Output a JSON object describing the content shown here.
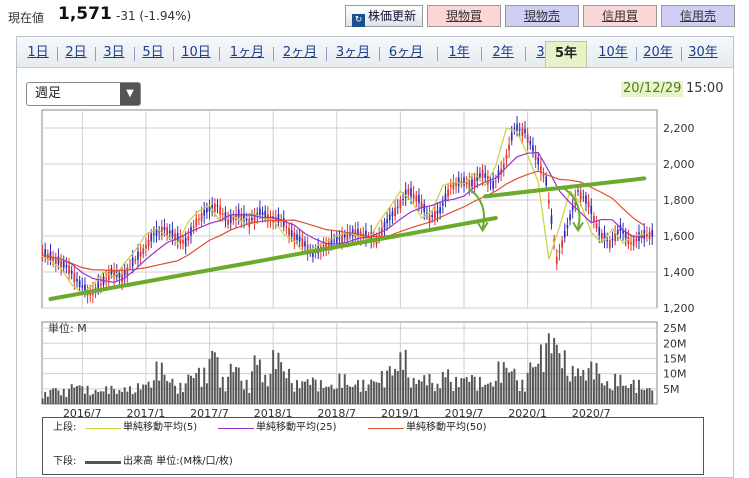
{
  "header": {
    "price_label": "現在値",
    "price_value": "1,571",
    "price_change": "-31 (-1.94%)",
    "refresh_icon": "refresh-icon",
    "refresh_label": "株価更新",
    "buy_label": "現物買",
    "sell_label": "現物売",
    "margin_buy_label": "信用買",
    "margin_sell_label": "信用売"
  },
  "tabs": [
    {
      "label": "1日"
    },
    {
      "label": "2日"
    },
    {
      "label": "3日"
    },
    {
      "label": "5日"
    },
    {
      "label": "10日"
    },
    {
      "label": "1ヶ月"
    },
    {
      "label": "2ヶ月"
    },
    {
      "label": "3ヶ月"
    },
    {
      "label": "6ヶ月"
    },
    {
      "label": "1年"
    },
    {
      "label": "2年"
    },
    {
      "label": "3年"
    },
    {
      "label": "5年"
    },
    {
      "label": "10年"
    },
    {
      "label": "20年"
    },
    {
      "label": "30年"
    }
  ],
  "active_tab": "5年",
  "period_select": {
    "value": "週足"
  },
  "timestamp": {
    "date": "20/12/29",
    "time": "15:00"
  },
  "colors": {
    "up_candle": "#e0322e",
    "down_candle": "#2f2fb8",
    "ma5": "#c9cf3a",
    "ma25": "#9b30d0",
    "ma50": "#e05030",
    "volume": "#555555",
    "trendline": "#6aab2e"
  },
  "chart_data": [
    {
      "type": "candlestick",
      "interval": "weekly",
      "x_tick_labels": [
        "2016/7",
        "2017/1",
        "2017/7",
        "2018/1",
        "2018/7",
        "2019/1",
        "2019/7",
        "2020/1",
        "2020/7"
      ],
      "y_tick_labels": [
        "2,200",
        "2,000",
        "1,800",
        "1,600",
        "1,400",
        "1,200"
      ],
      "ylim": [
        1200,
        2300
      ],
      "grid": true,
      "close_series": [
        [
          "2016/1",
          1470
        ],
        [
          "2016/2",
          1520
        ],
        [
          "2016/3",
          1490
        ],
        [
          "2016/4",
          1460
        ],
        [
          "2016/5",
          1420
        ],
        [
          "2016/6",
          1330
        ],
        [
          "2016/7",
          1280
        ],
        [
          "2016/8",
          1330
        ],
        [
          "2016/9",
          1400
        ],
        [
          "2016/10",
          1370
        ],
        [
          "2016/11",
          1450
        ],
        [
          "2016/12",
          1520
        ],
        [
          "2017/1",
          1610
        ],
        [
          "2017/2",
          1640
        ],
        [
          "2017/3",
          1600
        ],
        [
          "2017/4",
          1560
        ],
        [
          "2017/5",
          1680
        ],
        [
          "2017/6",
          1740
        ],
        [
          "2017/7",
          1770
        ],
        [
          "2017/8",
          1680
        ],
        [
          "2017/9",
          1720
        ],
        [
          "2017/10",
          1680
        ],
        [
          "2017/11",
          1730
        ],
        [
          "2017/12",
          1700
        ],
        [
          "2018/1",
          1690
        ],
        [
          "2018/2",
          1610
        ],
        [
          "2018/3",
          1570
        ],
        [
          "2018/4",
          1500
        ],
        [
          "2018/5",
          1540
        ],
        [
          "2018/6",
          1570
        ],
        [
          "2018/7",
          1600
        ],
        [
          "2018/8",
          1620
        ],
        [
          "2018/9",
          1600
        ],
        [
          "2018/10",
          1580
        ],
        [
          "2018/11",
          1680
        ],
        [
          "2018/12",
          1760
        ],
        [
          "2019/1",
          1850
        ],
        [
          "2019/2",
          1800
        ],
        [
          "2019/3",
          1700
        ],
        [
          "2019/4",
          1740
        ],
        [
          "2019/5",
          1880
        ],
        [
          "2019/6",
          1900
        ],
        [
          "2019/7",
          1890
        ],
        [
          "2019/8",
          1950
        ],
        [
          "2019/9",
          1880
        ],
        [
          "2019/10",
          1990
        ],
        [
          "2019/11",
          2200
        ],
        [
          "2019/12",
          2180
        ],
        [
          "2020/1",
          2050
        ],
        [
          "2020/2",
          1900
        ],
        [
          "2020/3",
          1470
        ],
        [
          "2020/4",
          1650
        ],
        [
          "2020/5",
          1850
        ],
        [
          "2020/6",
          1780
        ],
        [
          "2020/7",
          1620
        ],
        [
          "2020/8",
          1560
        ],
        [
          "2020/9",
          1640
        ],
        [
          "2020/10",
          1560
        ],
        [
          "2020/11",
          1600
        ],
        [
          "2020/12",
          1610
        ]
      ],
      "trendlines": [
        {
          "from": [
            "2016/4",
            1250
          ],
          "to": [
            "2019/10",
            1700
          ]
        },
        {
          "from": [
            "2019/9",
            1820
          ],
          "to": [
            "2020/12",
            1920
          ]
        }
      ],
      "annotations": [
        {
          "type": "arrow",
          "label": "down-curve-arrow",
          "at": "2019/8"
        },
        {
          "type": "arrow",
          "label": "down-curve-arrow",
          "at": "2020/5"
        }
      ]
    },
    {
      "type": "bar",
      "title": "単位: M",
      "y_tick_labels": [
        "25M",
        "20M",
        "15M",
        "10M",
        "5M"
      ],
      "ylim": [
        0,
        27
      ],
      "volume_series": [
        [
          "2016/1",
          4
        ],
        [
          "2016/2",
          5
        ],
        [
          "2016/3",
          4
        ],
        [
          "2016/4",
          6
        ],
        [
          "2016/5",
          5
        ],
        [
          "2016/6",
          7
        ],
        [
          "2016/7",
          6
        ],
        [
          "2016/8",
          5
        ],
        [
          "2016/9",
          6
        ],
        [
          "2016/10",
          5
        ],
        [
          "2016/11",
          6
        ],
        [
          "2016/12",
          7
        ],
        [
          "2017/1",
          8
        ],
        [
          "2017/2",
          14
        ],
        [
          "2017/3",
          9
        ],
        [
          "2017/4",
          7
        ],
        [
          "2017/5",
          11
        ],
        [
          "2017/6",
          12
        ],
        [
          "2017/7",
          20
        ],
        [
          "2017/8",
          9
        ],
        [
          "2017/9",
          14
        ],
        [
          "2017/10",
          8
        ],
        [
          "2017/11",
          17
        ],
        [
          "2017/12",
          10
        ],
        [
          "2018/1",
          18
        ],
        [
          "2018/2",
          12
        ],
        [
          "2018/3",
          8
        ],
        [
          "2018/4",
          9
        ],
        [
          "2018/5",
          8
        ],
        [
          "2018/6",
          7
        ],
        [
          "2018/7",
          10
        ],
        [
          "2018/8",
          7
        ],
        [
          "2018/9",
          8
        ],
        [
          "2018/10",
          9
        ],
        [
          "2018/11",
          11
        ],
        [
          "2018/12",
          13
        ],
        [
          "2019/1",
          18
        ],
        [
          "2019/2",
          9
        ],
        [
          "2019/3",
          10
        ],
        [
          "2019/4",
          7
        ],
        [
          "2019/5",
          12
        ],
        [
          "2019/6",
          9
        ],
        [
          "2019/7",
          10
        ],
        [
          "2019/8",
          9
        ],
        [
          "2019/9",
          8
        ],
        [
          "2019/10",
          14
        ],
        [
          "2019/11",
          13
        ],
        [
          "2019/12",
          8
        ],
        [
          "2020/1",
          15
        ],
        [
          "2020/2",
          20
        ],
        [
          "2020/3",
          24
        ],
        [
          "2020/4",
          18
        ],
        [
          "2020/5",
          13
        ],
        [
          "2020/6",
          12
        ],
        [
          "2020/7",
          14
        ],
        [
          "2020/8",
          8
        ],
        [
          "2020/9",
          10
        ],
        [
          "2020/10",
          7
        ],
        [
          "2020/11",
          8
        ],
        [
          "2020/12",
          6
        ]
      ]
    }
  ],
  "legend": {
    "upper_label": "上段:",
    "ma5": "単純移動平均(5)",
    "ma25": "単純移動平均(25)",
    "ma50": "単純移動平均(50)",
    "lower_label": "下段:",
    "volume": "出来高 単位:(M株/口/枚)"
  }
}
